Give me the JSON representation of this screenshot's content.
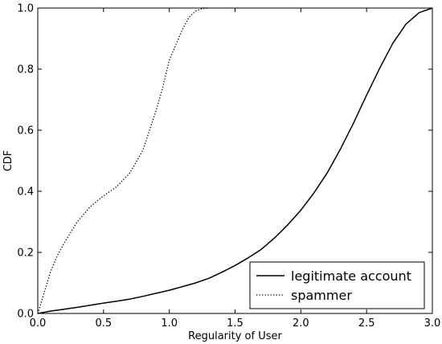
{
  "chart_data": {
    "type": "line",
    "title": "",
    "xlabel": "Regularity of User",
    "ylabel": "CDF",
    "xlim": [
      0.0,
      3.0
    ],
    "ylim": [
      0.0,
      1.0
    ],
    "xticks": [
      "0.0",
      "0.5",
      "1.0",
      "1.5",
      "2.0",
      "2.5",
      "3.0"
    ],
    "yticks": [
      "0.0",
      "0.2",
      "0.4",
      "0.6",
      "0.8",
      "1.0"
    ],
    "grid": false,
    "legend_position": "bottom-right",
    "series": [
      {
        "name": "legitimate account",
        "style": "solid",
        "color": "#000000",
        "x": [
          0.0,
          0.1,
          0.2,
          0.3,
          0.4,
          0.5,
          0.6,
          0.7,
          0.8,
          0.9,
          1.0,
          1.1,
          1.2,
          1.3,
          1.4,
          1.5,
          1.6,
          1.7,
          1.8,
          1.9,
          2.0,
          2.1,
          2.2,
          2.3,
          2.4,
          2.5,
          2.6,
          2.7,
          2.8,
          2.9,
          3.0
        ],
        "y": [
          0.0,
          0.008,
          0.014,
          0.02,
          0.027,
          0.034,
          0.04,
          0.047,
          0.056,
          0.066,
          0.076,
          0.088,
          0.1,
          0.115,
          0.135,
          0.157,
          0.182,
          0.21,
          0.247,
          0.29,
          0.338,
          0.395,
          0.46,
          0.537,
          0.623,
          0.715,
          0.803,
          0.885,
          0.948,
          0.985,
          1.0
        ]
      },
      {
        "name": "spammer",
        "style": "dotted",
        "color": "#000000",
        "x": [
          0.0,
          0.05,
          0.1,
          0.15,
          0.2,
          0.3,
          0.4,
          0.5,
          0.6,
          0.7,
          0.8,
          0.85,
          0.9,
          0.95,
          1.0,
          1.05,
          1.1,
          1.15,
          1.2,
          1.25,
          1.3
        ],
        "y": [
          0.0,
          0.07,
          0.14,
          0.19,
          0.23,
          0.3,
          0.35,
          0.385,
          0.415,
          0.46,
          0.535,
          0.6,
          0.665,
          0.74,
          0.83,
          0.88,
          0.93,
          0.97,
          0.99,
          0.998,
          1.0
        ]
      }
    ]
  }
}
